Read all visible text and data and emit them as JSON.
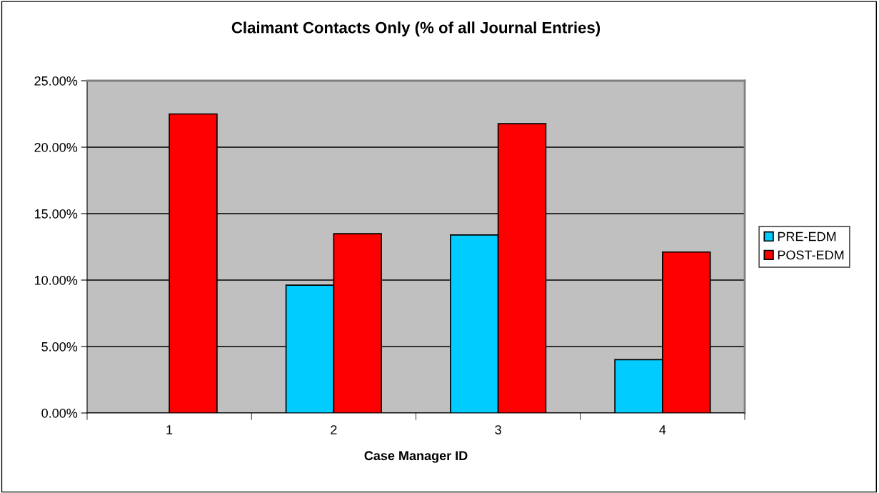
{
  "chart_data": {
    "type": "bar",
    "title": "Claimant Contacts Only (% of all Journal Entries)",
    "xlabel": "Case Manager ID",
    "categories": [
      "1",
      "2",
      "3",
      "4"
    ],
    "series": [
      {
        "name": "PRE-EDM",
        "color": "#00ccff",
        "values": [
          null,
          9.62,
          13.39,
          4.01
        ]
      },
      {
        "name": "POST-EDM",
        "color": "#ff0000",
        "values": [
          22.5,
          13.49,
          21.77,
          12.11
        ]
      }
    ],
    "ylim": [
      0,
      25
    ],
    "yticks": [
      {
        "value": 0,
        "label": "0.00%"
      },
      {
        "value": 5,
        "label": "5.00%"
      },
      {
        "value": 10,
        "label": "10.00%"
      },
      {
        "value": 15,
        "label": "15.00%"
      },
      {
        "value": 20,
        "label": "20.00%"
      },
      {
        "value": 25,
        "label": "25.00%"
      }
    ],
    "grid": "y",
    "legend": "right"
  }
}
